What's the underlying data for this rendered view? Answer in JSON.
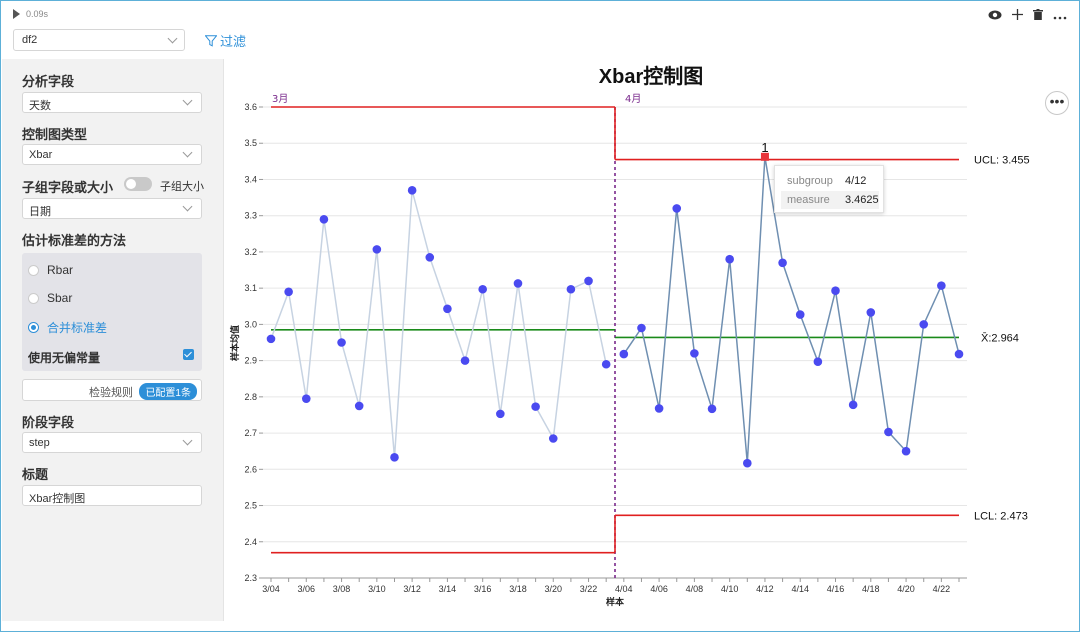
{
  "toolbar": {
    "run_time": "0.09s",
    "icons": [
      "eye-icon",
      "plus-icon",
      "trash-icon",
      "more-horizontal-icon"
    ],
    "dataframe_selected": "df2",
    "filter_label": "过滤"
  },
  "sidebar": {
    "analysis_field_label": "分析字段",
    "analysis_field_value": "天数",
    "chart_type_label": "控制图类型",
    "chart_type_value": "Xbar",
    "subgroup_label": "子组字段或大小",
    "subgroup_toggle_label": "子组大小",
    "subgroup_value": "日期",
    "stddev_method_label": "估计标准差的方法",
    "methods": [
      {
        "label": "Rbar",
        "selected": false
      },
      {
        "label": "Sbar",
        "selected": false
      },
      {
        "label": "合并标准差",
        "selected": true
      }
    ],
    "unbiased_label": "使用无偏常量",
    "unbiased_checked": true,
    "rules_label": "检验规则",
    "rules_badge": "已配置1条",
    "phase_label": "阶段字段",
    "phase_value": "step",
    "title_label": "标题",
    "title_value": "Xbar控制图"
  },
  "tooltip": {
    "rows": [
      {
        "key": "subgroup",
        "value": "4/12"
      },
      {
        "key": "measure",
        "value": "3.4625"
      }
    ]
  },
  "chart_data": {
    "type": "line",
    "title": "Xbar控制图",
    "xlabel": "样本",
    "ylabel": "样本均值",
    "ylim": [
      2.3,
      3.6
    ],
    "yticks": [
      "2.3",
      "2.4",
      "2.5",
      "2.6",
      "2.7",
      "2.8",
      "2.9",
      "3.0",
      "3.1",
      "3.2",
      "3.3",
      "3.4",
      "3.5",
      "3.6"
    ],
    "xtick_labels": [
      "3/04",
      "3/06",
      "3/08",
      "3/10",
      "3/12",
      "3/14",
      "3/16",
      "3/18",
      "3/20",
      "3/22",
      "4/04",
      "4/06",
      "4/08",
      "4/10",
      "4/12",
      "4/14",
      "4/16",
      "4/18",
      "4/20",
      "4/22"
    ],
    "phases": [
      {
        "label": "3月",
        "ucl": 3.6,
        "lcl": 2.37,
        "center": 2.985,
        "start": 0,
        "end": 19
      },
      {
        "label": "4月",
        "ucl": 3.455,
        "lcl": 2.473,
        "center": 2.964,
        "start": 20,
        "end": 39
      }
    ],
    "ucl_label": "UCL: 3.455",
    "lcl_label": "LCL: 2.473",
    "center_label": "X̄:2.964",
    "violation_marker": "1",
    "violation_index": 28,
    "series": [
      {
        "values": [
          2.96,
          3.09,
          2.795,
          3.29,
          2.95,
          2.775,
          3.207,
          2.633,
          3.37,
          3.185,
          3.043,
          2.9,
          3.097,
          2.753,
          3.113,
          2.773,
          2.685,
          3.097,
          3.12,
          2.89,
          2.918,
          2.99,
          2.768,
          3.32,
          2.92,
          2.767,
          3.18,
          2.617,
          3.4625,
          3.17,
          3.027,
          2.897,
          3.093,
          2.778,
          3.033,
          2.703,
          2.65,
          3.0,
          3.107,
          2.918
        ]
      }
    ]
  }
}
